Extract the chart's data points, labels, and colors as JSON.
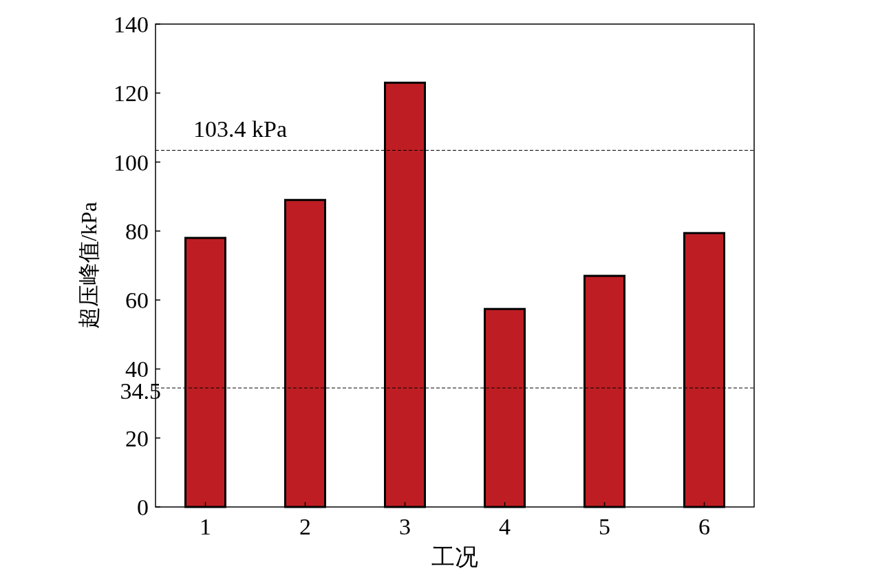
{
  "chart_data": {
    "type": "bar",
    "xlabel": "工况",
    "ylabel": "超压峰值/kPa",
    "categories": [
      "1",
      "2",
      "3",
      "4",
      "5",
      "6"
    ],
    "values": [
      78,
      89,
      123,
      57.4,
      67,
      79.4
    ],
    "color": "#be1e23",
    "ylim": [
      0,
      140
    ],
    "yticks": [
      0,
      20,
      40,
      60,
      80,
      100,
      120,
      140
    ],
    "grid": false,
    "ref_lines": [
      {
        "axis": "y",
        "value": 103.4,
        "label": "103.4 kPa",
        "line_style": "dashed"
      },
      {
        "axis": "y",
        "value": 34.5,
        "label": "34.5",
        "line_style": "dashed"
      }
    ]
  }
}
